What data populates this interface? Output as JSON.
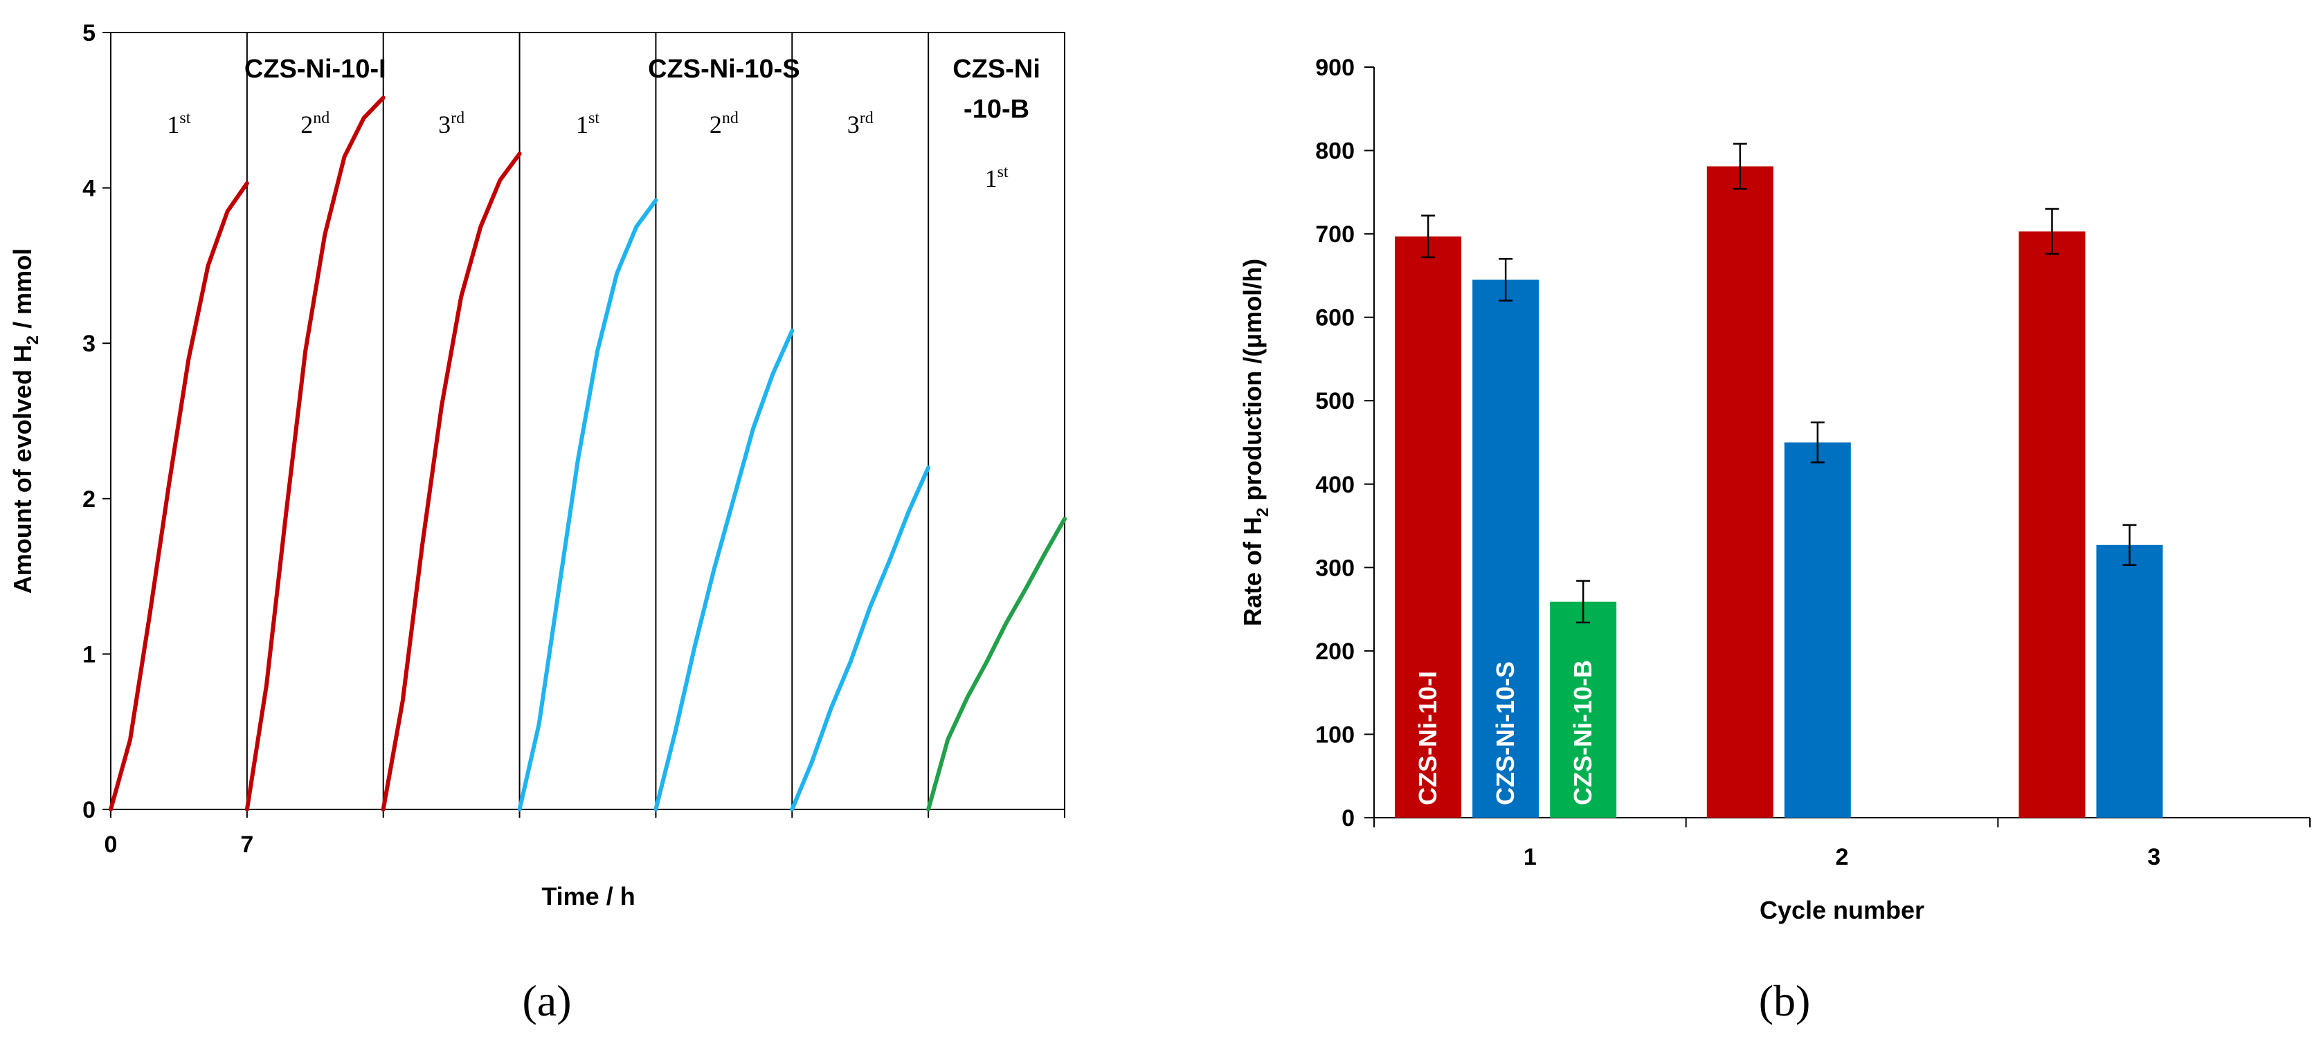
{
  "chart_data": [
    {
      "type": "line",
      "panel_label": "(a)",
      "xlabel": "Time / h",
      "ylabel": "Amount of evolved H2 / mmol",
      "ylabel_parts": {
        "main": "Amount of evolved H",
        "sub": "2",
        "rest": " / mmol"
      },
      "ylim": [
        0,
        5
      ],
      "yticks": [
        "0",
        "1",
        "2",
        "3",
        "4",
        "5"
      ],
      "xticks": [
        "0",
        "7"
      ],
      "segment_duration_h": 7,
      "groups": [
        {
          "name": "CZS-Ni-10-I",
          "start_segment": 0,
          "span": 3
        },
        {
          "name": "CZS-Ni-10-S",
          "start_segment": 3,
          "span": 3
        },
        {
          "name_line1": "CZS-Ni",
          "name_line2": "-10-B",
          "start_segment": 6,
          "span": 1
        }
      ],
      "series": [
        {
          "name": "CZS-Ni-10-I",
          "color": "#c00000",
          "runs": [
            {
              "cycle": "1",
              "sup": "st",
              "segment": 0,
              "x": [
                0,
                1,
                2,
                3,
                4,
                5,
                6,
                7
              ],
              "y": [
                0,
                0.45,
                1.25,
                2.1,
                2.9,
                3.5,
                3.85,
                4.03
              ]
            },
            {
              "cycle": "2",
              "sup": "nd",
              "segment": 1,
              "x": [
                0,
                1,
                2,
                3,
                4,
                5,
                6,
                7
              ],
              "y": [
                0,
                0.8,
                1.9,
                2.95,
                3.7,
                4.2,
                4.45,
                4.58
              ]
            },
            {
              "cycle": "3",
              "sup": "rd",
              "segment": 2,
              "x": [
                0,
                1,
                2,
                3,
                4,
                5,
                6,
                7
              ],
              "y": [
                0,
                0.7,
                1.7,
                2.6,
                3.3,
                3.75,
                4.05,
                4.22
              ]
            }
          ]
        },
        {
          "name": "CZS-Ni-10-S",
          "color": "#1fb4f0",
          "runs": [
            {
              "cycle": "1",
              "sup": "st",
              "segment": 3,
              "x": [
                0,
                1,
                2,
                3,
                4,
                5,
                6,
                7
              ],
              "y": [
                0,
                0.55,
                1.4,
                2.25,
                2.95,
                3.45,
                3.75,
                3.92
              ]
            },
            {
              "cycle": "2",
              "sup": "nd",
              "segment": 4,
              "x": [
                0,
                1,
                2,
                3,
                4,
                5,
                6,
                7
              ],
              "y": [
                0,
                0.5,
                1.05,
                1.55,
                2.0,
                2.45,
                2.8,
                3.08
              ]
            },
            {
              "cycle": "3",
              "sup": "rd",
              "segment": 5,
              "x": [
                0,
                1,
                2,
                3,
                4,
                5,
                6,
                7
              ],
              "y": [
                0,
                0.3,
                0.65,
                0.95,
                1.3,
                1.6,
                1.92,
                2.2
              ]
            }
          ]
        },
        {
          "name": "CZS-Ni-10-B",
          "color": "#23a04a",
          "runs": [
            {
              "cycle": "1",
              "sup": "st",
              "segment": 6,
              "x": [
                0,
                1,
                2,
                3,
                4,
                5,
                6,
                7
              ],
              "y": [
                0,
                0.45,
                0.72,
                0.95,
                1.2,
                1.42,
                1.65,
                1.87
              ]
            }
          ]
        }
      ]
    },
    {
      "type": "bar",
      "panel_label": "(b)",
      "xlabel": "Cycle number",
      "ylabel": "Rate of H2 production /(μmol/h)",
      "ylabel_parts": {
        "main": "Rate of H",
        "sub": "2",
        "rest": " production /(μmol/h)"
      },
      "ylim": [
        0,
        900
      ],
      "yticks": [
        "0",
        "100",
        "200",
        "300",
        "400",
        "500",
        "600",
        "700",
        "800",
        "900"
      ],
      "categories": [
        "1",
        "2",
        "3"
      ],
      "series": [
        {
          "name": "CZS-Ni-10-I",
          "color": "#c00000",
          "values": [
            697,
            781,
            703
          ],
          "errors": [
            25,
            27,
            27
          ]
        },
        {
          "name": "CZS-Ni-10-S",
          "color": "#0070c0",
          "values": [
            645,
            450,
            327
          ],
          "errors": [
            25,
            24,
            24
          ]
        },
        {
          "name": "CZS-Ni-10-B",
          "color": "#00b050",
          "values": [
            259,
            null,
            null
          ],
          "errors": [
            25,
            null,
            null
          ]
        }
      ],
      "bar_labels_inside": true
    }
  ]
}
